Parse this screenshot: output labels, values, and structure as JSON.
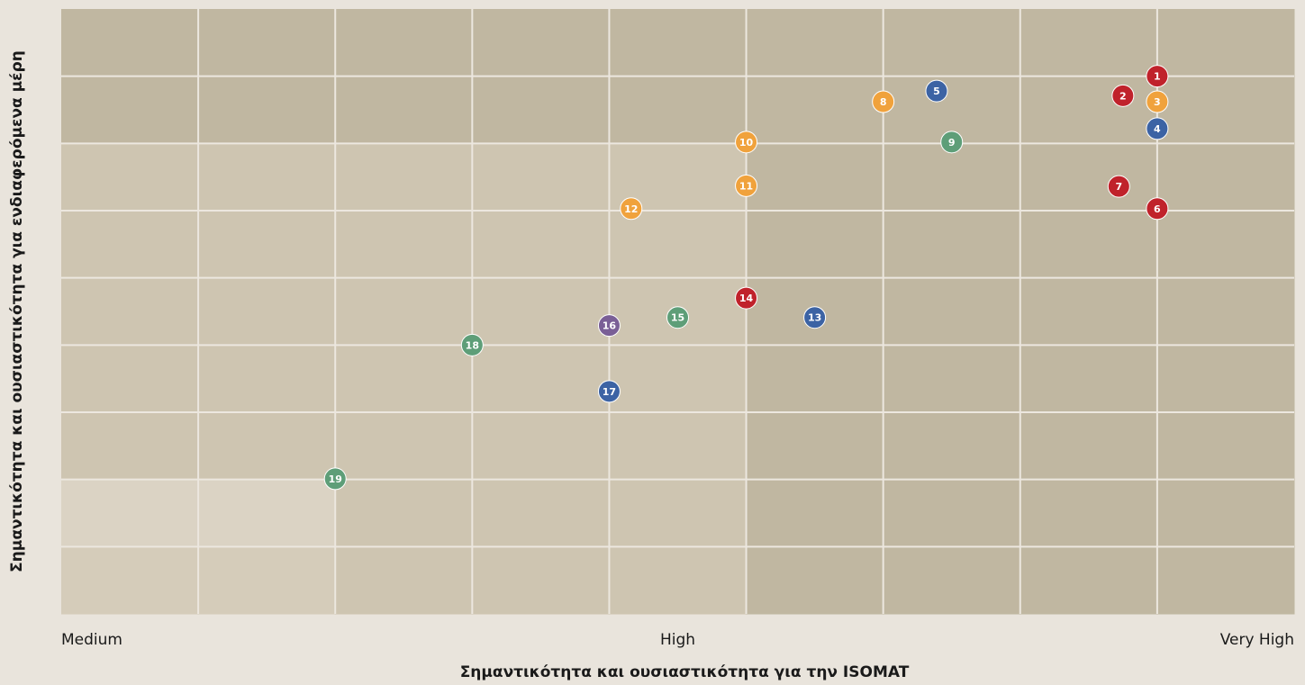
{
  "chart_data": {
    "type": "scatter",
    "x_label": "Σημαντικότητα και ουσιαστικότητα για την ISOMAT",
    "y_label": "Σημαντικότητα και ουσιαστικότητα για ενδιαφερόμενα μέρη",
    "xlim": [
      0,
      9
    ],
    "ylim": [
      0,
      9
    ],
    "xticks": [
      {
        "value": 0,
        "label": "Medium"
      },
      {
        "value": 4.5,
        "label": "High"
      },
      {
        "value": 9,
        "label": "Very High"
      }
    ],
    "points": [
      {
        "label": "1",
        "x": 8.0,
        "y": 8.0,
        "color": "#c0222b"
      },
      {
        "label": "2",
        "x": 7.75,
        "y": 7.71,
        "color": "#c0222b"
      },
      {
        "label": "3",
        "x": 8.0,
        "y": 7.62,
        "color": "#f0a23c"
      },
      {
        "label": "4",
        "x": 8.0,
        "y": 7.22,
        "color": "#3c63a4"
      },
      {
        "label": "5",
        "x": 6.39,
        "y": 7.78,
        "color": "#3c63a4"
      },
      {
        "label": "6",
        "x": 8.0,
        "y": 6.03,
        "color": "#c0222b"
      },
      {
        "label": "7",
        "x": 7.72,
        "y": 6.36,
        "color": "#c0222b"
      },
      {
        "label": "8",
        "x": 6.0,
        "y": 7.62,
        "color": "#f0a23c"
      },
      {
        "label": "9",
        "x": 6.5,
        "y": 7.02,
        "color": "#5e9e78"
      },
      {
        "label": "10",
        "x": 5.0,
        "y": 7.02,
        "color": "#f0a23c"
      },
      {
        "label": "11",
        "x": 5.0,
        "y": 6.37,
        "color": "#f0a23c"
      },
      {
        "label": "12",
        "x": 4.16,
        "y": 6.03,
        "color": "#f0a23c"
      },
      {
        "label": "13",
        "x": 5.5,
        "y": 4.41,
        "color": "#3c63a4"
      },
      {
        "label": "14",
        "x": 5.0,
        "y": 4.7,
        "color": "#c0222b"
      },
      {
        "label": "15",
        "x": 4.5,
        "y": 4.41,
        "color": "#5e9e78"
      },
      {
        "label": "16",
        "x": 4.0,
        "y": 4.29,
        "color": "#7a5f96"
      },
      {
        "label": "17",
        "x": 4.0,
        "y": 3.31,
        "color": "#3c63a4"
      },
      {
        "label": "18",
        "x": 3.0,
        "y": 4.0,
        "color": "#5e9e78"
      },
      {
        "label": "19",
        "x": 2.0,
        "y": 2.01,
        "color": "#5e9e78"
      }
    ]
  }
}
